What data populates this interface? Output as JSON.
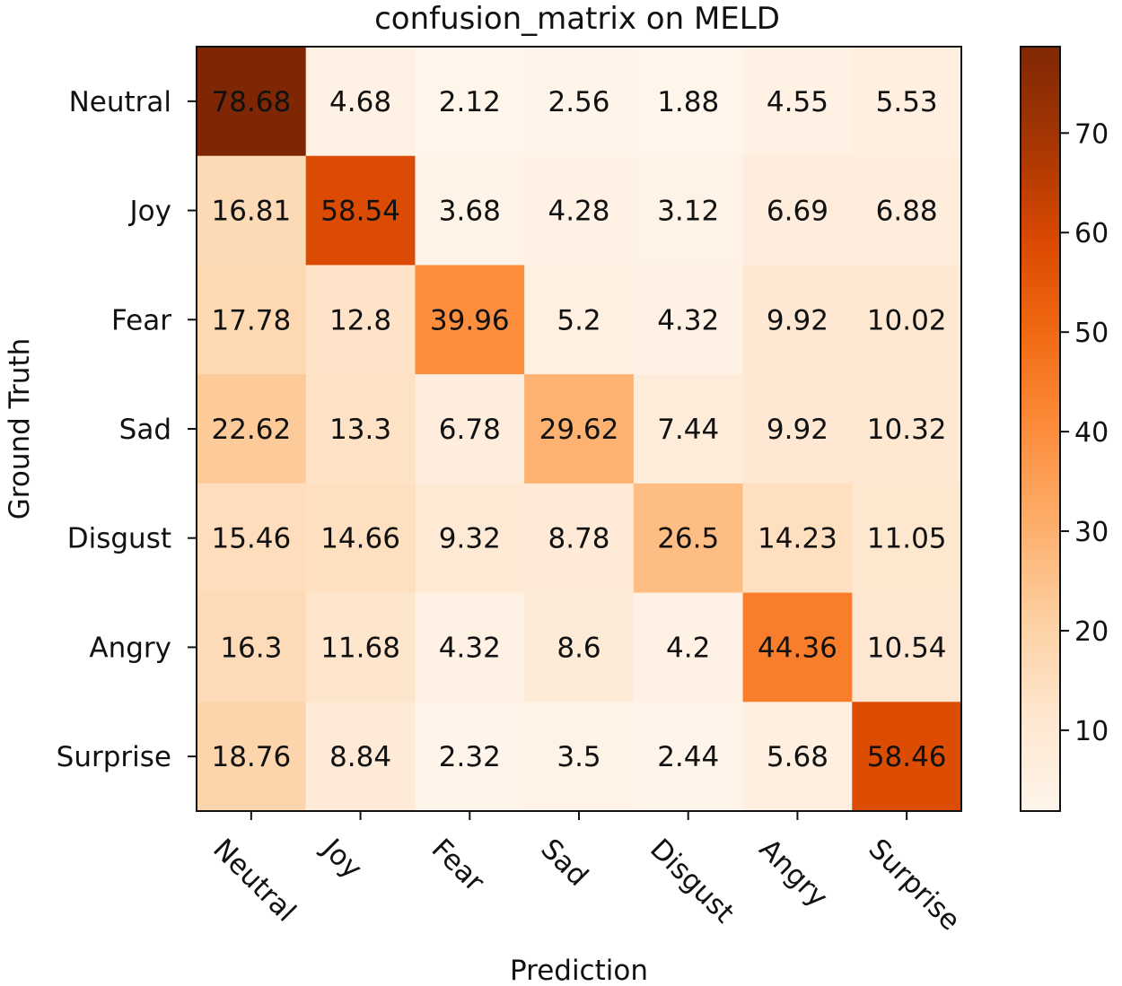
{
  "chart_data": {
    "type": "heatmap",
    "title": "confusion_matrix on MELD",
    "xlabel": "Prediction",
    "ylabel": "Ground Truth",
    "x_categories": [
      "Neutral",
      "Joy",
      "Fear",
      "Sad",
      "Disgust",
      "Angry",
      "Surprise"
    ],
    "y_categories": [
      "Neutral",
      "Joy",
      "Fear",
      "Sad",
      "Disgust",
      "Angry",
      "Surprise"
    ],
    "values": [
      [
        78.68,
        4.68,
        2.12,
        2.56,
        1.88,
        4.55,
        5.53
      ],
      [
        16.81,
        58.54,
        3.68,
        4.28,
        3.12,
        6.69,
        6.88
      ],
      [
        17.78,
        12.8,
        39.96,
        5.2,
        4.32,
        9.92,
        10.02
      ],
      [
        22.62,
        13.3,
        6.78,
        29.62,
        7.44,
        9.92,
        10.32
      ],
      [
        15.46,
        14.66,
        9.32,
        8.78,
        26.5,
        14.23,
        11.05
      ],
      [
        16.3,
        11.68,
        4.32,
        8.6,
        4.2,
        44.36,
        10.54
      ],
      [
        18.76,
        8.84,
        2.32,
        3.5,
        2.44,
        5.68,
        58.46
      ]
    ],
    "colormap": "Oranges",
    "color_range": [
      1.88,
      78.68
    ],
    "colorbar_ticks": [
      10,
      20,
      30,
      40,
      50,
      60,
      70
    ],
    "x_tick_rotation_deg": 45,
    "colorbar_placement": "right"
  }
}
